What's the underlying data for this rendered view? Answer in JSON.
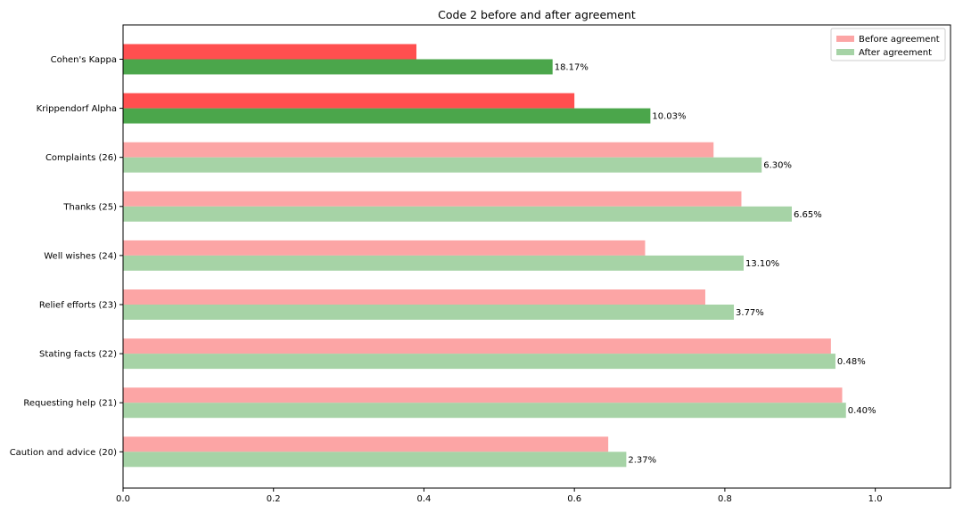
{
  "chart_data": {
    "type": "bar",
    "orientation": "horizontal",
    "title": "Code 2 before and after agreement",
    "xlabel": "",
    "ylabel": "",
    "xlim": [
      0,
      1.1
    ],
    "xticks": [
      0,
      0.2,
      0.4,
      0.6,
      0.8,
      1.0
    ],
    "xtick_labels": [
      "0.0",
      "0.2",
      "0.4",
      "0.6",
      "0.8",
      "1.0"
    ],
    "grid": false,
    "legend_position": "top-right",
    "categories": [
      "Cohen's Kappa",
      "Krippendorf Alpha",
      "Complaints (26)",
      "Thanks (25)",
      "Well wishes (24)",
      "Relief efforts (23)",
      "Stating facts (22)",
      "Requesting help (21)",
      "Caution and advice (20)"
    ],
    "series": [
      {
        "name": "Before agreement",
        "values": [
          0.39,
          0.6,
          0.785,
          0.822,
          0.694,
          0.774,
          0.941,
          0.956,
          0.645
        ],
        "colors": [
          "#ff4f4f",
          "#ff4f4f",
          "#fca5a5",
          "#fca5a5",
          "#fca5a5",
          "#fca5a5",
          "#fca5a5",
          "#fca5a5",
          "#fca5a5"
        ]
      },
      {
        "name": "After agreement",
        "values": [
          0.571,
          0.701,
          0.849,
          0.889,
          0.825,
          0.812,
          0.947,
          0.961,
          0.669
        ],
        "colors": [
          "#4ba64b",
          "#4ba64b",
          "#a6d3a6",
          "#a6d3a6",
          "#a6d3a6",
          "#a6d3a6",
          "#a6d3a6",
          "#a6d3a6",
          "#a6d3a6"
        ]
      }
    ],
    "data_labels": [
      "18.17%",
      "10.03%",
      "6.30%",
      "6.65%",
      "13.10%",
      "3.77%",
      "0.48%",
      "0.40%",
      "2.37%"
    ],
    "legend_colors": {
      "Before agreement": "#fca5a5",
      "After agreement": "#a6d3a6"
    }
  }
}
